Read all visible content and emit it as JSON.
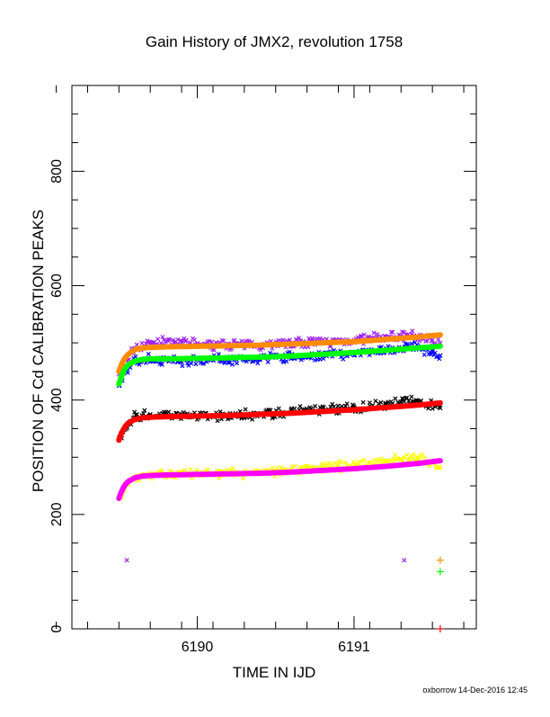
{
  "chart_data": {
    "type": "scatter",
    "title": "Gain History of JMX2, revolution 1758",
    "xlabel": "TIME IN IJD",
    "ylabel": "POSITION OF Cd CALIBRATION PEAKS",
    "xlim": [
      6189.2,
      6191.78
    ],
    "ylim": [
      0,
      950
    ],
    "xticks": [
      6190,
      6191
    ],
    "yticks": [
      0,
      200,
      400,
      600,
      800
    ],
    "footer": "oxborrow 14-Dec-2016 12:45",
    "series": [
      {
        "color": "#a020f0",
        "marker": "x",
        "mode": "scatter",
        "x": [
          6189.5,
          6189.55,
          6189.6,
          6189.7,
          6189.8,
          6189.9,
          6190.0,
          6190.1,
          6190.2,
          6190.3,
          6190.4,
          6190.5,
          6190.6,
          6190.7,
          6190.8,
          6190.9,
          6191.0,
          6191.1,
          6191.2,
          6191.3,
          6191.4,
          6191.5,
          6191.55
        ],
        "y": [
          445,
          470,
          490,
          500,
          503,
          500,
          497,
          496,
          498,
          495,
          497,
          499,
          500,
          501,
          500,
          503,
          505,
          508,
          510,
          512,
          512,
          505,
          500
        ]
      },
      {
        "color": "#0000ff",
        "marker": "x",
        "mode": "scatter",
        "x": [
          6189.5,
          6189.55,
          6189.6,
          6189.7,
          6189.8,
          6189.9,
          6190.0,
          6190.1,
          6190.2,
          6190.3,
          6190.4,
          6190.5,
          6190.6,
          6190.7,
          6190.8,
          6190.9,
          6191.0,
          6191.1,
          6191.2,
          6191.3,
          6191.4,
          6191.5,
          6191.55
        ],
        "y": [
          425,
          450,
          468,
          472,
          470,
          468,
          470,
          472,
          471,
          470,
          472,
          474,
          475,
          476,
          478,
          480,
          482,
          485,
          487,
          490,
          492,
          485,
          478
        ]
      },
      {
        "color": "#000000",
        "marker": "x",
        "mode": "scatter",
        "x": [
          6189.5,
          6189.55,
          6189.6,
          6189.7,
          6189.8,
          6189.9,
          6190.0,
          6190.1,
          6190.2,
          6190.3,
          6190.4,
          6190.5,
          6190.6,
          6190.7,
          6190.8,
          6190.9,
          6191.0,
          6191.1,
          6191.2,
          6191.3,
          6191.4,
          6191.5,
          6191.55
        ],
        "y": [
          330,
          355,
          370,
          375,
          374,
          373,
          372,
          371,
          373,
          374,
          375,
          377,
          379,
          381,
          383,
          385,
          387,
          390,
          393,
          396,
          398,
          392,
          386
        ]
      },
      {
        "color": "#ffff00",
        "marker": "x",
        "mode": "scatter",
        "x": [
          6189.5,
          6189.55,
          6189.6,
          6189.7,
          6189.8,
          6189.9,
          6190.0,
          6190.1,
          6190.2,
          6190.3,
          6190.4,
          6190.5,
          6190.6,
          6190.7,
          6190.8,
          6190.9,
          6191.0,
          6191.1,
          6191.2,
          6191.3,
          6191.4,
          6191.5,
          6191.55
        ],
        "y": [
          230,
          252,
          265,
          270,
          271,
          270,
          270,
          271,
          272,
          273,
          274,
          276,
          278,
          280,
          282,
          284,
          287,
          290,
          293,
          297,
          300,
          290,
          282
        ]
      },
      {
        "color": "#ff8c00",
        "marker": "line",
        "mode": "curve",
        "x": [
          6189.5,
          6189.52,
          6189.55,
          6189.6,
          6189.65,
          6189.7,
          6189.8,
          6190.0,
          6190.2,
          6190.4,
          6190.6,
          6190.8,
          6191.0,
          6191.2,
          6191.4,
          6191.55
        ],
        "y": [
          450,
          465,
          478,
          488,
          491,
          492,
          493,
          494,
          495,
          496,
          498,
          500,
          502,
          506,
          510,
          514
        ]
      },
      {
        "color": "#00ff00",
        "marker": "line",
        "mode": "curve",
        "x": [
          6189.5,
          6189.52,
          6189.55,
          6189.6,
          6189.65,
          6189.7,
          6189.8,
          6190.0,
          6190.2,
          6190.4,
          6190.6,
          6190.8,
          6191.0,
          6191.2,
          6191.4,
          6191.55
        ],
        "y": [
          428,
          445,
          460,
          468,
          471,
          472,
          472,
          473,
          474,
          475,
          477,
          480,
          483,
          487,
          491,
          494
        ]
      },
      {
        "color": "#ff0000",
        "marker": "line",
        "mode": "curve",
        "x": [
          6189.5,
          6189.52,
          6189.55,
          6189.6,
          6189.65,
          6189.7,
          6189.8,
          6190.0,
          6190.2,
          6190.4,
          6190.6,
          6190.8,
          6191.0,
          6191.2,
          6191.4,
          6191.55
        ],
        "y": [
          330,
          345,
          358,
          366,
          369,
          370,
          371,
          372,
          373,
          375,
          377,
          380,
          383,
          387,
          391,
          395
        ]
      },
      {
        "color": "#ff00ff",
        "marker": "line",
        "mode": "curve",
        "x": [
          6189.5,
          6189.52,
          6189.55,
          6189.6,
          6189.65,
          6189.7,
          6189.8,
          6190.0,
          6190.2,
          6190.4,
          6190.6,
          6190.8,
          6191.0,
          6191.2,
          6191.4,
          6191.55
        ],
        "y": [
          228,
          243,
          256,
          264,
          267,
          268,
          269,
          270,
          271,
          272,
          274,
          277,
          280,
          284,
          289,
          294
        ]
      },
      {
        "color": "#a020f0",
        "marker": "x",
        "mode": "scatter",
        "x": [
          6189.55,
          6191.32
        ],
        "y": [
          120,
          120
        ]
      },
      {
        "color": "#ff8c00",
        "marker": "+",
        "mode": "scatter",
        "x": [
          6191.55
        ],
        "y": [
          120
        ]
      },
      {
        "color": "#00ff00",
        "marker": "+",
        "mode": "scatter",
        "x": [
          6191.55
        ],
        "y": [
          100
        ]
      },
      {
        "color": "#ff0000",
        "marker": "+",
        "mode": "scatter",
        "x": [
          6191.55
        ],
        "y": [
          0
        ]
      }
    ]
  }
}
